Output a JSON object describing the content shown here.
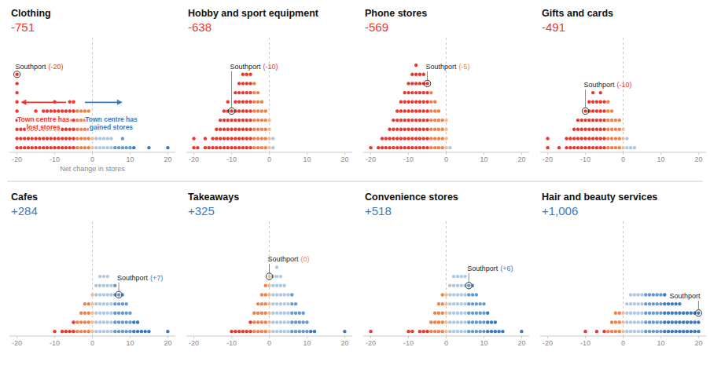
{
  "chart_data": [
    {
      "type": "dot",
      "title": "Clothing",
      "subtitle": "-751",
      "subtitle_color": "#e8372c",
      "xlabel": "Net change in stores",
      "x": [
        -20,
        -19,
        -18,
        -17,
        -16,
        -15,
        -14,
        -13,
        -12,
        -11,
        -10,
        -9,
        -8,
        -7,
        -6,
        -5,
        -4,
        -3,
        -2,
        -1,
        0,
        1,
        2,
        3,
        4,
        5,
        6,
        7,
        8,
        9,
        10,
        11,
        15,
        20
      ],
      "values": [
        9,
        4,
        3,
        3,
        4,
        5,
        4,
        5,
        5,
        5,
        6,
        5,
        5,
        5,
        6,
        6,
        5,
        5,
        5,
        5,
        4,
        3,
        3,
        2,
        2,
        2,
        1,
        1,
        2,
        1,
        1,
        1,
        1,
        1
      ],
      "colors": [
        "#e8372c",
        "#e8372c",
        "#e8372c",
        "#e8372c",
        "#e8372c",
        "#e8372c",
        "#e8372c",
        "#e8372c",
        "#e8372c",
        "#e8372c",
        "#e8372c",
        "#e8372c",
        "#e8372c",
        "#e8372c",
        "#e8372c",
        "#e8372c",
        "#f0804a",
        "#f0804a",
        "#f0804a",
        "#f0804a",
        "#f5b990",
        "#aec8e0",
        "#aec8e0",
        "#aec8e0",
        "#aec8e0",
        "#aec8e0",
        "#6699cc",
        "#6699cc",
        "#6699cc",
        "#6699cc",
        "#6699cc",
        "#3a7abf",
        "#3a7abf",
        "#3a7abf"
      ],
      "xlim": [
        -22,
        22
      ],
      "xticks": [
        -20,
        -10,
        0,
        10,
        20
      ],
      "ylim": [
        -0.5,
        12
      ],
      "tick_labels": "x",
      "grid": false,
      "annotations": [
        {
          "text": "Southport",
          "x": -20,
          "marker": "circle"
        },
        {
          "text": "(-20)",
          "x": -20,
          "color": "#e8372c"
        },
        {
          "text": "Town centre has\nlost stores",
          "x": -13,
          "arrow": [
            -7,
            -19
          ],
          "color": "#e8372c"
        },
        {
          "text": "Town centre has\ngained stores",
          "x": 5,
          "arrow": [
            -2,
            8
          ],
          "color": "#3a7abf"
        }
      ]
    },
    {
      "type": "dot",
      "title": "Hobby and sport equipment",
      "subtitle": "-638",
      "subtitle_color": "#e8372c",
      "x": [
        -20,
        -19,
        -17,
        -16,
        -15,
        -14,
        -13,
        -12,
        -11,
        -10,
        -9,
        -8,
        -7,
        -6,
        -5,
        -4,
        -3,
        -2,
        -1,
        0,
        1
      ],
      "values": [
        2,
        1,
        2,
        1,
        2,
        3,
        4,
        5,
        6,
        5,
        7,
        8,
        9,
        9,
        9,
        8,
        7,
        6,
        5,
        4,
        2
      ],
      "colors": [
        "#e8372c",
        "#e8372c",
        "#e8372c",
        "#e8372c",
        "#e8372c",
        "#e8372c",
        "#e8372c",
        "#e8372c",
        "#e8372c",
        "#e8372c",
        "#e8372c",
        "#e8372c",
        "#e8372c",
        "#e8372c",
        "#e8372c",
        "#f0804a",
        "#f0804a",
        "#f0804a",
        "#f0804a",
        "#f5b990",
        "#aec8e0"
      ],
      "xlim": [
        -22,
        22
      ],
      "xticks": [
        -20,
        -10,
        0,
        10,
        20
      ],
      "ylim": [
        -0.5,
        12
      ],
      "tick_labels": "x",
      "grid": false,
      "annotations": [
        {
          "text": "Southport",
          "x": -10,
          "marker": "circle"
        },
        {
          "text": "(-10)",
          "x": -10,
          "color": "#e8372c"
        }
      ]
    },
    {
      "type": "dot",
      "title": "Phone stores",
      "subtitle": "-569",
      "subtitle_color": "#e8372c",
      "x": [
        -20,
        -18,
        -17,
        -16,
        -15,
        -14,
        -13,
        -12,
        -11,
        -10,
        -9,
        -8,
        -7,
        -6,
        -5,
        -4,
        -3,
        -2,
        -1,
        0,
        1
      ],
      "values": [
        1,
        1,
        2,
        2,
        3,
        4,
        5,
        6,
        7,
        8,
        9,
        10,
        9,
        9,
        8,
        7,
        6,
        5,
        4,
        4,
        1
      ],
      "colors": [
        "#e8372c",
        "#e8372c",
        "#e8372c",
        "#e8372c",
        "#e8372c",
        "#e8372c",
        "#e8372c",
        "#e8372c",
        "#e8372c",
        "#e8372c",
        "#e8372c",
        "#e8372c",
        "#e8372c",
        "#e8372c",
        "#e8372c",
        "#f0804a",
        "#f0804a",
        "#f0804a",
        "#f0804a",
        "#f5b990",
        "#aec8e0"
      ],
      "xlim": [
        -22,
        22
      ],
      "xticks": [
        -20,
        -10,
        0,
        10,
        20
      ],
      "ylim": [
        -0.5,
        12
      ],
      "tick_labels": "x",
      "grid": false,
      "annotations": [
        {
          "text": "Southport",
          "x": -5,
          "marker": "circle"
        },
        {
          "text": "(-5)",
          "x": -5,
          "color": "#e8874a"
        }
      ]
    },
    {
      "type": "dot",
      "title": "Gifts and cards",
      "subtitle": "-491",
      "subtitle_color": "#e8372c",
      "x": [
        -20,
        -17,
        -15,
        -14,
        -13,
        -12,
        -11,
        -10,
        -9,
        -8,
        -7,
        -6,
        -5,
        -4,
        -3,
        -2,
        -1,
        0,
        1,
        2,
        3
      ],
      "values": [
        2,
        1,
        2,
        2,
        3,
        4,
        4,
        5,
        6,
        7,
        6,
        7,
        6,
        6,
        5,
        4,
        4,
        3,
        2,
        1,
        1
      ],
      "colors": [
        "#e8372c",
        "#e8372c",
        "#e8372c",
        "#e8372c",
        "#e8372c",
        "#e8372c",
        "#e8372c",
        "#e8372c",
        "#e8372c",
        "#e8372c",
        "#e8372c",
        "#e8372c",
        "#e8372c",
        "#f0804a",
        "#f0804a",
        "#f0804a",
        "#f0804a",
        "#f5b990",
        "#aec8e0",
        "#aec8e0",
        "#aec8e0"
      ],
      "xlim": [
        -22,
        22
      ],
      "xticks": [
        -20,
        -10,
        0,
        10,
        20
      ],
      "ylim": [
        -0.5,
        12
      ],
      "tick_labels": "x",
      "grid": false,
      "annotations": [
        {
          "text": "Southport",
          "x": -10,
          "marker": "circle"
        },
        {
          "text": "(-10)",
          "x": -10,
          "color": "#e8372c"
        }
      ]
    },
    {
      "type": "dot",
      "title": "Cafes",
      "subtitle": "+284",
      "subtitle_color": "#3a7abf",
      "x": [
        -10,
        -8,
        -7,
        -6,
        -5,
        -4,
        -3,
        -2,
        -1,
        0,
        1,
        2,
        3,
        4,
        5,
        6,
        7,
        8,
        9,
        10,
        11,
        12,
        13,
        14,
        15,
        20
      ],
      "values": [
        1,
        1,
        1,
        1,
        2,
        2,
        3,
        4,
        4,
        5,
        6,
        7,
        7,
        7,
        6,
        6,
        5,
        5,
        4,
        3,
        2,
        2,
        1,
        1,
        1,
        1
      ],
      "colors": [
        "#e8372c",
        "#e8372c",
        "#e8372c",
        "#e8372c",
        "#e8372c",
        "#f0804a",
        "#f0804a",
        "#f0804a",
        "#f0804a",
        "#f5b990",
        "#aec8e0",
        "#aec8e0",
        "#aec8e0",
        "#aec8e0",
        "#aec8e0",
        "#6699cc",
        "#6699cc",
        "#6699cc",
        "#6699cc",
        "#6699cc",
        "#3a7abf",
        "#3a7abf",
        "#3a7abf",
        "#3a7abf",
        "#3a7abf",
        "#3a7abf"
      ],
      "xlim": [
        -22,
        22
      ],
      "xticks": [
        -20,
        -10,
        0,
        10,
        20
      ],
      "ylim": [
        -0.5,
        12
      ],
      "tick_labels": "x",
      "grid": false,
      "annotations": [
        {
          "text": "Southport",
          "x": 7,
          "marker": "circle"
        },
        {
          "text": "(+7)",
          "x": 7,
          "color": "#3a7abf"
        }
      ]
    },
    {
      "type": "dot",
      "title": "Takeaways",
      "subtitle": "+325",
      "subtitle_color": "#3a7abf",
      "x": [
        -10,
        -9,
        -8,
        -7,
        -6,
        -5,
        -4,
        -3,
        -2,
        -1,
        0,
        1,
        2,
        3,
        4,
        5,
        6,
        7,
        8,
        9,
        10,
        11,
        12,
        20
      ],
      "values": [
        1,
        1,
        1,
        1,
        1,
        2,
        3,
        4,
        5,
        6,
        7,
        7,
        8,
        7,
        6,
        5,
        5,
        4,
        3,
        3,
        2,
        1,
        1,
        1
      ],
      "colors": [
        "#e8372c",
        "#e8372c",
        "#e8372c",
        "#e8372c",
        "#e8372c",
        "#e8372c",
        "#f0804a",
        "#f0804a",
        "#f0804a",
        "#f0804a",
        "#f5b990",
        "#aec8e0",
        "#aec8e0",
        "#aec8e0",
        "#aec8e0",
        "#aec8e0",
        "#6699cc",
        "#6699cc",
        "#6699cc",
        "#6699cc",
        "#6699cc",
        "#3a7abf",
        "#3a7abf",
        "#3a7abf"
      ],
      "xlim": [
        -22,
        22
      ],
      "xticks": [
        -20,
        -10,
        0,
        10,
        20
      ],
      "ylim": [
        -0.5,
        12
      ],
      "tick_labels": "x",
      "grid": false,
      "annotations": [
        {
          "text": "Southport",
          "x": 0,
          "marker": "circle"
        },
        {
          "text": "(0)",
          "x": 0,
          "color": "#e8874a"
        }
      ]
    },
    {
      "type": "dot",
      "title": "Convenience stores",
      "subtitle": "+518",
      "subtitle_color": "#3a7abf",
      "x": [
        -20,
        -10,
        -9,
        -7,
        -6,
        -5,
        -4,
        -3,
        -2,
        -1,
        0,
        1,
        2,
        3,
        4,
        5,
        6,
        7,
        8,
        9,
        10,
        11,
        12,
        13,
        14,
        15,
        20
      ],
      "values": [
        1,
        1,
        1,
        1,
        1,
        1,
        2,
        3,
        4,
        5,
        5,
        6,
        7,
        7,
        7,
        7,
        6,
        6,
        5,
        4,
        4,
        3,
        2,
        2,
        1,
        1,
        1
      ],
      "colors": [
        "#e8372c",
        "#e8372c",
        "#e8372c",
        "#e8372c",
        "#e8372c",
        "#e8372c",
        "#f0804a",
        "#f0804a",
        "#f0804a",
        "#f0804a",
        "#f5b990",
        "#aec8e0",
        "#aec8e0",
        "#aec8e0",
        "#aec8e0",
        "#aec8e0",
        "#6699cc",
        "#6699cc",
        "#6699cc",
        "#6699cc",
        "#6699cc",
        "#3a7abf",
        "#3a7abf",
        "#3a7abf",
        "#3a7abf",
        "#3a7abf",
        "#3a7abf"
      ],
      "xlim": [
        -22,
        22
      ],
      "xticks": [
        -20,
        -10,
        0,
        10,
        20
      ],
      "ylim": [
        -0.5,
        12
      ],
      "tick_labels": "x",
      "grid": false,
      "annotations": [
        {
          "text": "Southport",
          "x": 6,
          "marker": "circle"
        },
        {
          "text": "(+6)",
          "x": 6,
          "color": "#3a7abf"
        }
      ]
    },
    {
      "type": "dot",
      "title": "Hair and beauty services",
      "subtitle": "+1,006",
      "subtitle_color": "#3a7abf",
      "x": [
        -10,
        -7,
        -5,
        -4,
        -3,
        -2,
        -1,
        0,
        1,
        2,
        3,
        4,
        5,
        6,
        7,
        8,
        9,
        10,
        11,
        12,
        13,
        14,
        15,
        16,
        17,
        18,
        19,
        20
      ],
      "values": [
        1,
        1,
        1,
        1,
        2,
        3,
        3,
        3,
        4,
        5,
        5,
        5,
        5,
        5,
        5,
        5,
        5,
        5,
        5,
        4,
        4,
        4,
        4,
        3,
        3,
        3,
        3,
        3
      ],
      "colors": [
        "#e8372c",
        "#e8372c",
        "#e8372c",
        "#f0804a",
        "#f0804a",
        "#f0804a",
        "#f0804a",
        "#f5b990",
        "#aec8e0",
        "#aec8e0",
        "#aec8e0",
        "#aec8e0",
        "#aec8e0",
        "#6699cc",
        "#6699cc",
        "#6699cc",
        "#6699cc",
        "#6699cc",
        "#3a7abf",
        "#3a7abf",
        "#3a7abf",
        "#3a7abf",
        "#3a7abf",
        "#3a7abf",
        "#3a7abf",
        "#3a7abf",
        "#3a7abf",
        "#3a7abf"
      ],
      "xlim": [
        -22,
        22
      ],
      "xticks": [
        -20,
        -10,
        0,
        10,
        20
      ],
      "ylim": [
        -0.5,
        12
      ],
      "tick_labels": "x",
      "grid": false,
      "annotations": [
        {
          "text": "Southport",
          "x": 20,
          "marker": "circle"
        }
      ]
    }
  ]
}
